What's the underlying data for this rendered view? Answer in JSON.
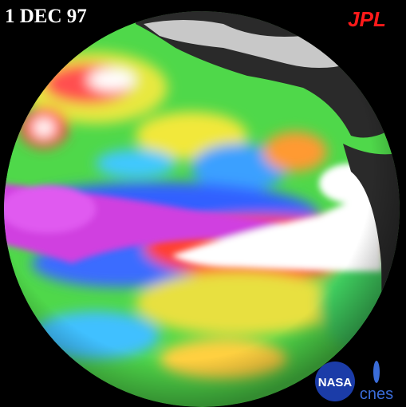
{
  "date_label": "1 DEC 97",
  "logos": {
    "jpl": "JPL",
    "nasa": "NASA",
    "cnes": "cnes"
  }
}
